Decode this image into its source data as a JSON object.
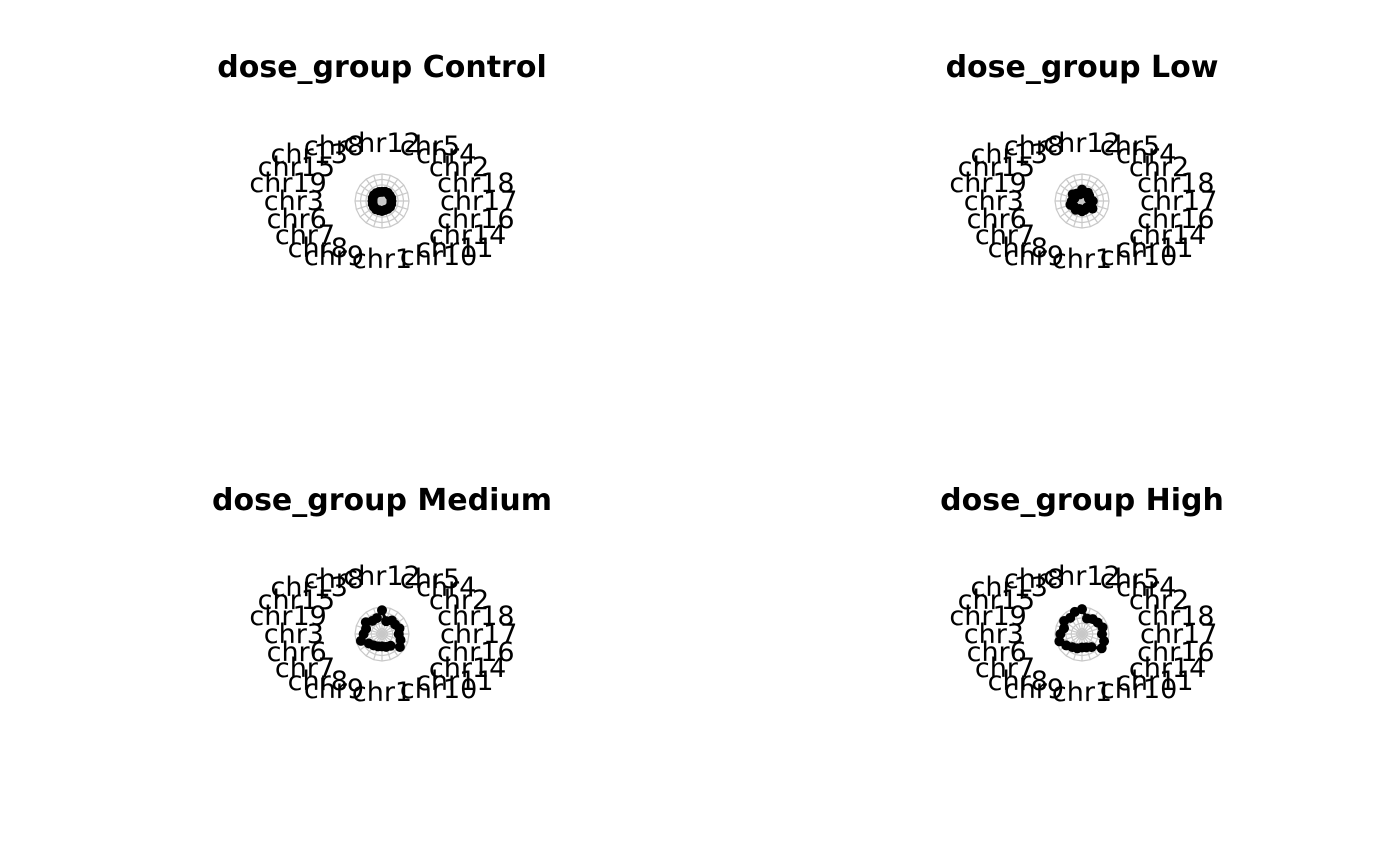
{
  "chart_data": [
    {
      "type": "radar",
      "title": "dose_group Control",
      "categories": [
        "chr12",
        "chr5",
        "chr4",
        "chr2",
        "chr18",
        "chr17",
        "chr16",
        "chr14",
        "chr11",
        "chr10",
        "chr1",
        "chr9",
        "chr8",
        "chr7",
        "chr6",
        "chr3",
        "chr19",
        "chr15",
        "chr13",
        "chr8b"
      ],
      "values": [
        0.34,
        0.36,
        0.37,
        0.35,
        0.36,
        0.35,
        0.36,
        0.37,
        0.36,
        0.35,
        0.37,
        0.36,
        0.38,
        0.37,
        0.36,
        0.35,
        0.36,
        0.37,
        0.36,
        0.35
      ],
      "color": "#000000",
      "grid_color": "#c8c8c8"
    },
    {
      "type": "radar",
      "title": "dose_group Low",
      "categories": [
        "chr12",
        "chr5",
        "chr4",
        "chr2",
        "chr18",
        "chr17",
        "chr16",
        "chr14",
        "chr11",
        "chr10",
        "chr1",
        "chr9",
        "chr8",
        "chr7",
        "chr6",
        "chr3",
        "chr19",
        "chr15",
        "chr13",
        "chr8b"
      ],
      "values": [
        0.42,
        0.3,
        0.38,
        0.33,
        0.27,
        0.4,
        0.36,
        0.48,
        0.3,
        0.34,
        0.38,
        0.31,
        0.4,
        0.36,
        0.45,
        0.38,
        0.3,
        0.42,
        0.34,
        0.26
      ],
      "color": "#000000",
      "grid_color": "#c8c8c8"
    },
    {
      "type": "radar",
      "title": "dose_group Medium",
      "categories": [
        "chr12",
        "chr5",
        "chr4",
        "chr2",
        "chr18",
        "chr17",
        "chr16",
        "chr14",
        "chr11",
        "chr10",
        "chr1",
        "chr9",
        "chr8",
        "chr7",
        "chr6",
        "chr3",
        "chr19",
        "chr15",
        "chr13",
        "chr8b"
      ],
      "values": [
        0.88,
        0.5,
        0.62,
        0.6,
        0.68,
        0.62,
        0.72,
        0.82,
        0.54,
        0.5,
        0.46,
        0.48,
        0.52,
        0.6,
        0.82,
        0.68,
        0.62,
        0.74,
        0.6,
        0.62
      ],
      "color": "#000000",
      "grid_color": "#c8c8c8"
    },
    {
      "type": "radar",
      "title": "dose_group High",
      "categories": [
        "chr12",
        "chr5",
        "chr4",
        "chr2",
        "chr18",
        "chr17",
        "chr16",
        "chr14",
        "chr11",
        "chr10",
        "chr1",
        "chr9",
        "chr8",
        "chr7",
        "chr6",
        "chr3",
        "chr19",
        "chr15",
        "chr13",
        "chr8b"
      ],
      "values": [
        0.92,
        0.6,
        0.68,
        0.72,
        0.8,
        0.74,
        0.86,
        0.9,
        0.6,
        0.52,
        0.5,
        0.56,
        0.6,
        0.72,
        0.88,
        0.8,
        0.7,
        0.82,
        0.74,
        0.86
      ],
      "color": "#000000",
      "grid_color": "#c8c8c8"
    }
  ]
}
